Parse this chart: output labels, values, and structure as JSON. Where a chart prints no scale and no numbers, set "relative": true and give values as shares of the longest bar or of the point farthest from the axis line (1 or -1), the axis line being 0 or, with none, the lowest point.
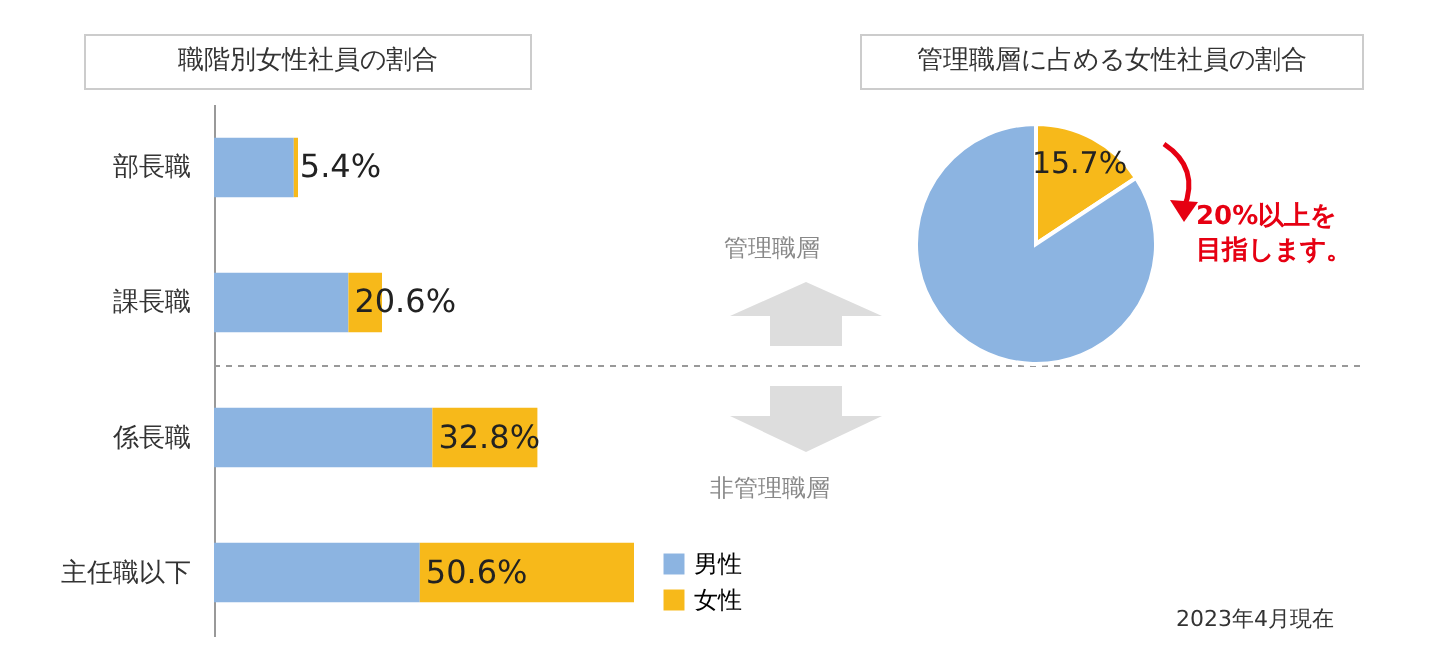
{
  "chart_data": [
    {
      "type": "bar",
      "orientation": "horizontal",
      "stacked": true,
      "relative": true,
      "title": "職階別女性社員の割合",
      "categories": [
        "部長職",
        "課長職",
        "係長職",
        "主任職以下"
      ],
      "series": [
        {
          "name": "男性",
          "color": "#8cb4e1",
          "values": [
            0.19,
            0.32,
            0.52,
            0.49
          ]
        },
        {
          "name": "女性",
          "color": "#f7b91a",
          "values": [
            0.01,
            0.08,
            0.25,
            0.51
          ]
        }
      ],
      "legend": "bottom right",
      "annotations": [
        "管理職層",
        "非管理職層",
        "5.4%",
        "20.6%",
        "32.8%",
        "50.6%"
      ]
    },
    {
      "type": "pie",
      "title": "管理職層に占める女性社員の割合",
      "categories": [
        null,
        null
      ],
      "values": [
        15.7,
        84.3
      ],
      "colors": [
        "#f7b91a",
        "#8cb4e1"
      ],
      "value_labels": [
        "15.7%",
        null
      ],
      "annotations": [
        "20%以上を目指します。",
        "2023年4月現在"
      ]
    }
  ]
}
